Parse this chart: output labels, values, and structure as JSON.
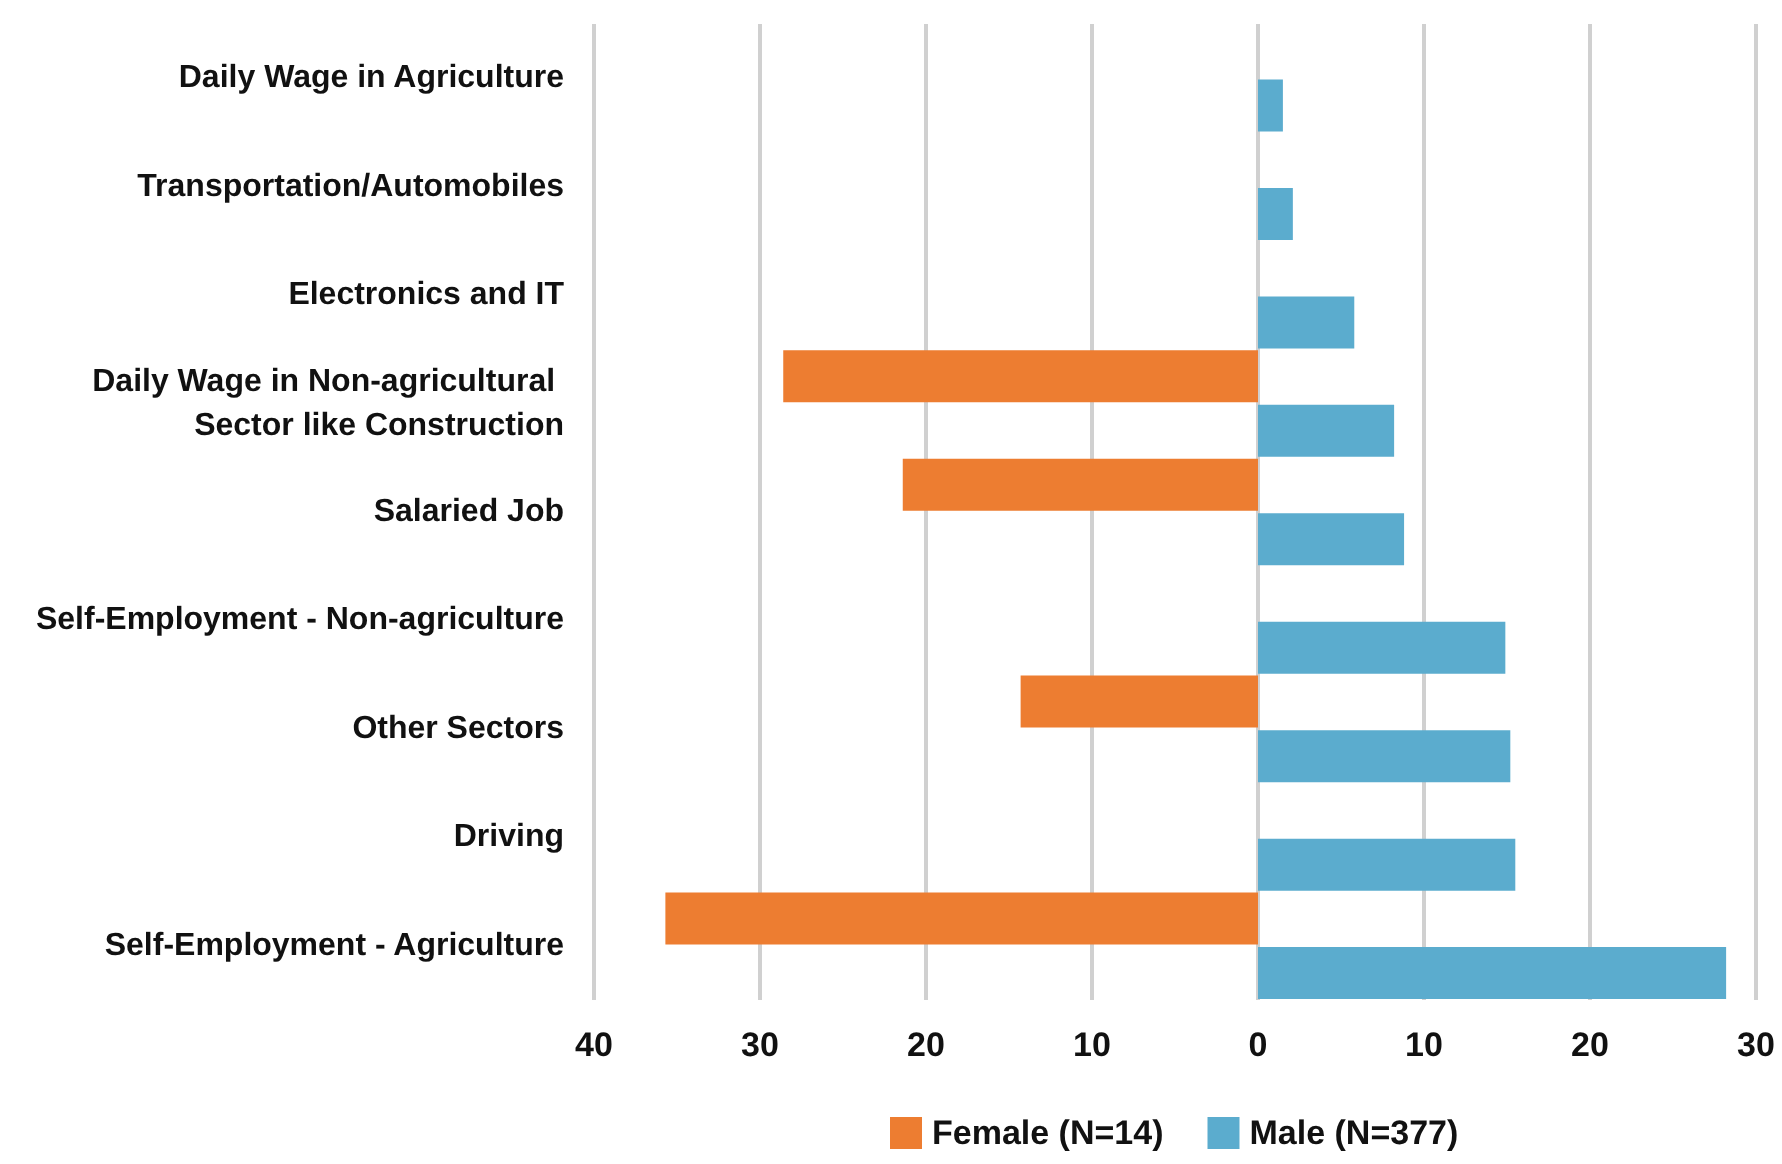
{
  "chart_data": {
    "type": "bar",
    "orientation": "horizontal",
    "categories": [
      "Daily Wage in Agriculture",
      "Transportation/Automobiles",
      "Electronics and IT",
      "Daily Wage in Non-agricultural Sector like Construction",
      "Salaried Job",
      "Self-Employment - Non-agriculture",
      "Other Sectors",
      "Driving",
      "Self-Employment - Agriculture"
    ],
    "series": [
      {
        "name": "Female (N=14)",
        "color": "#ed7d31",
        "values": [
          null,
          null,
          null,
          -28.6,
          -21.4,
          null,
          -14.3,
          null,
          -35.7
        ]
      },
      {
        "name": "Male (N=377)",
        "color": "#5bacce",
        "values": [
          1.5,
          2.1,
          5.8,
          8.2,
          8.8,
          14.9,
          15.2,
          15.5,
          28.2
        ]
      }
    ],
    "xlim": [
      -40,
      30
    ],
    "xticks": [
      {
        "value": -40,
        "label": "40"
      },
      {
        "value": -30,
        "label": "30"
      },
      {
        "value": -20,
        "label": "20"
      },
      {
        "value": -10,
        "label": "10"
      },
      0,
      10,
      20,
      30
    ],
    "grid": "x",
    "legend": "bottom"
  }
}
